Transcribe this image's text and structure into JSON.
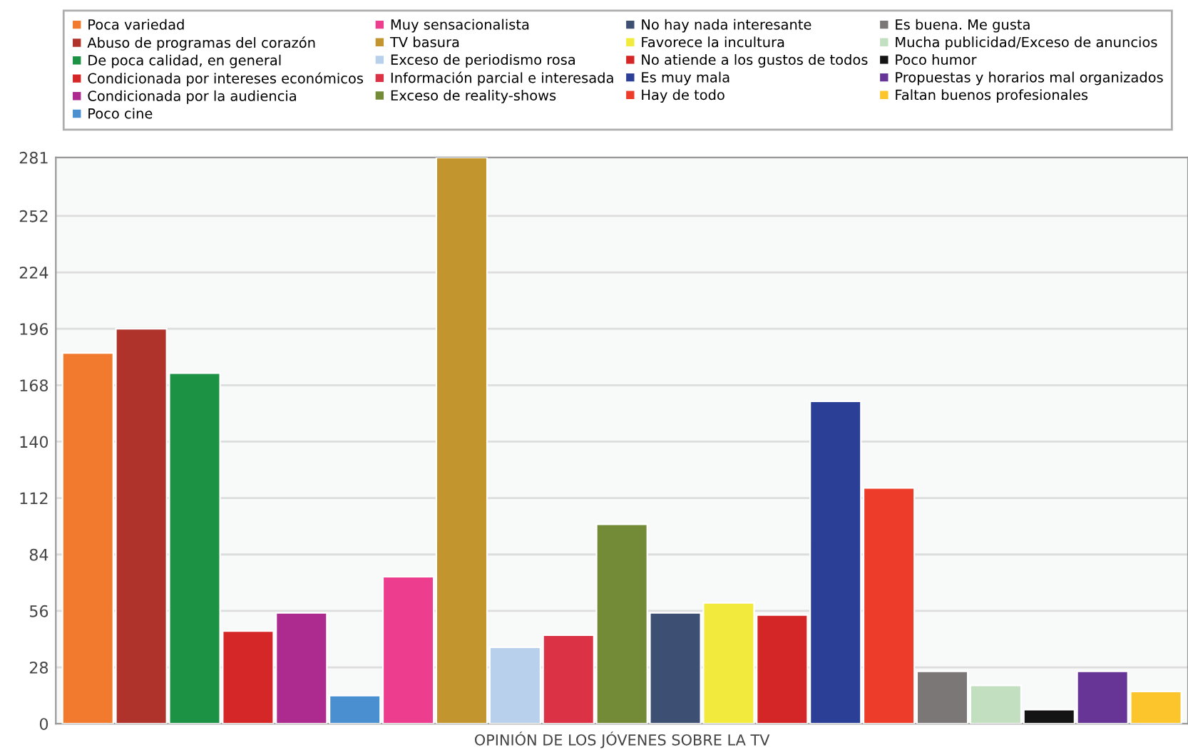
{
  "chart_data": {
    "type": "bar",
    "xlabel": "OPINIÓN DE LOS JÓVENES SOBRE LA TV",
    "categories": [
      null,
      null,
      null,
      null,
      null,
      null,
      null,
      null,
      null,
      null,
      null,
      null,
      null,
      null,
      null,
      null,
      null,
      null,
      null,
      null,
      null
    ],
    "series": [
      {
        "name": "Poca variedad",
        "color": "#f27a2e",
        "values": [
          184,
          null,
          null,
          null,
          null,
          null,
          null,
          null,
          null,
          null,
          null,
          null,
          null,
          null,
          null,
          null,
          null,
          null,
          null,
          null,
          null
        ]
      },
      {
        "name": "Abuso de programas del corazón",
        "color": "#b0332b",
        "values": [
          null,
          196,
          null,
          null,
          null,
          null,
          null,
          null,
          null,
          null,
          null,
          null,
          null,
          null,
          null,
          null,
          null,
          null,
          null,
          null,
          null
        ]
      },
      {
        "name": "De poca calidad, en general",
        "color": "#1c9245",
        "values": [
          null,
          null,
          174,
          null,
          null,
          null,
          null,
          null,
          null,
          null,
          null,
          null,
          null,
          null,
          null,
          null,
          null,
          null,
          null,
          null,
          null
        ]
      },
      {
        "name": "Condicionada por intereses económicos",
        "color": "#d62728",
        "values": [
          null,
          null,
          null,
          46,
          null,
          null,
          null,
          null,
          null,
          null,
          null,
          null,
          null,
          null,
          null,
          null,
          null,
          null,
          null,
          null,
          null
        ]
      },
      {
        "name": "Condicionada por la audiencia",
        "color": "#ad2a8f",
        "values": [
          null,
          null,
          null,
          null,
          55,
          null,
          null,
          null,
          null,
          null,
          null,
          null,
          null,
          null,
          null,
          null,
          null,
          null,
          null,
          null,
          null
        ]
      },
      {
        "name": "Poco cine",
        "color": "#4a90d0",
        "values": [
          null,
          null,
          null,
          null,
          null,
          14,
          null,
          null,
          null,
          null,
          null,
          null,
          null,
          null,
          null,
          null,
          null,
          null,
          null,
          null,
          null
        ]
      },
      {
        "name": "Muy sensacionalista",
        "color": "#ec3d8e",
        "values": [
          null,
          null,
          null,
          null,
          null,
          null,
          73,
          null,
          null,
          null,
          null,
          null,
          null,
          null,
          null,
          null,
          null,
          null,
          null,
          null,
          null
        ]
      },
      {
        "name": "TV basura",
        "color": "#c2952e",
        "values": [
          null,
          null,
          null,
          null,
          null,
          null,
          null,
          281,
          null,
          null,
          null,
          null,
          null,
          null,
          null,
          null,
          null,
          null,
          null,
          null,
          null
        ]
      },
      {
        "name": "Exceso de periodismo rosa",
        "color": "#b8d0ec",
        "values": [
          null,
          null,
          null,
          null,
          null,
          null,
          null,
          null,
          38,
          null,
          null,
          null,
          null,
          null,
          null,
          null,
          null,
          null,
          null,
          null,
          null
        ]
      },
      {
        "name": "Información parcial e interesada",
        "color": "#dc3246",
        "values": [
          null,
          null,
          null,
          null,
          null,
          null,
          null,
          null,
          null,
          44,
          null,
          null,
          null,
          null,
          null,
          null,
          null,
          null,
          null,
          null,
          null
        ]
      },
      {
        "name": "Exceso de reality-shows",
        "color": "#738a36",
        "values": [
          null,
          null,
          null,
          null,
          null,
          null,
          null,
          null,
          null,
          null,
          99,
          null,
          null,
          null,
          null,
          null,
          null,
          null,
          null,
          null,
          null
        ]
      },
      {
        "name": "No hay nada interesante",
        "color": "#3d5073",
        "values": [
          null,
          null,
          null,
          null,
          null,
          null,
          null,
          null,
          null,
          null,
          null,
          55,
          null,
          null,
          null,
          null,
          null,
          null,
          null,
          null,
          null
        ]
      },
      {
        "name": "Favorece la incultura",
        "color": "#f2ea3c",
        "values": [
          null,
          null,
          null,
          null,
          null,
          null,
          null,
          null,
          null,
          null,
          null,
          null,
          60,
          null,
          null,
          null,
          null,
          null,
          null,
          null,
          null
        ]
      },
      {
        "name": "No atiende a los gustos de todos",
        "color": "#d42626",
        "values": [
          null,
          null,
          null,
          null,
          null,
          null,
          null,
          null,
          null,
          null,
          null,
          null,
          null,
          54,
          null,
          null,
          null,
          null,
          null,
          null,
          null
        ]
      },
      {
        "name": "Es muy mala",
        "color": "#2b3f96",
        "values": [
          null,
          null,
          null,
          null,
          null,
          null,
          null,
          null,
          null,
          null,
          null,
          null,
          null,
          null,
          160,
          null,
          null,
          null,
          null,
          null,
          null
        ]
      },
      {
        "name": "Hay de todo",
        "color": "#ee3c2a",
        "values": [
          null,
          null,
          null,
          null,
          null,
          null,
          null,
          null,
          null,
          null,
          null,
          null,
          null,
          null,
          null,
          117,
          null,
          null,
          null,
          null,
          null
        ]
      },
      {
        "name": "Es buena. Me gusta",
        "color": "#7c7777",
        "values": [
          null,
          null,
          null,
          null,
          null,
          null,
          null,
          null,
          null,
          null,
          null,
          null,
          null,
          null,
          null,
          null,
          26,
          null,
          null,
          null,
          null
        ]
      },
      {
        "name": "Mucha publicidad/Exceso de anuncios",
        "color": "#c2e0c0",
        "values": [
          null,
          null,
          null,
          null,
          null,
          null,
          null,
          null,
          null,
          null,
          null,
          null,
          null,
          null,
          null,
          null,
          null,
          19,
          null,
          null,
          null
        ]
      },
      {
        "name": "Poco humor",
        "color": "#141414",
        "values": [
          null,
          null,
          null,
          null,
          null,
          null,
          null,
          null,
          null,
          null,
          null,
          null,
          null,
          null,
          null,
          null,
          null,
          null,
          7,
          null,
          null
        ]
      },
      {
        "name": "Propuestas y horarios mal organizados",
        "color": "#663596",
        "values": [
          null,
          null,
          null,
          null,
          null,
          null,
          null,
          null,
          null,
          null,
          null,
          null,
          null,
          null,
          null,
          null,
          null,
          null,
          null,
          26,
          null
        ]
      },
      {
        "name": "Faltan buenos profesionales",
        "color": "#fcc52c",
        "values": [
          null,
          null,
          null,
          null,
          null,
          null,
          null,
          null,
          null,
          null,
          null,
          null,
          null,
          null,
          null,
          null,
          null,
          null,
          null,
          null,
          16
        ]
      }
    ],
    "ylim": [
      0,
      281
    ],
    "yticks": [
      0,
      28,
      56,
      84,
      112,
      140,
      168,
      196,
      224,
      252,
      281
    ],
    "grid": "y",
    "legend": "top",
    "tick_labels": "y"
  }
}
